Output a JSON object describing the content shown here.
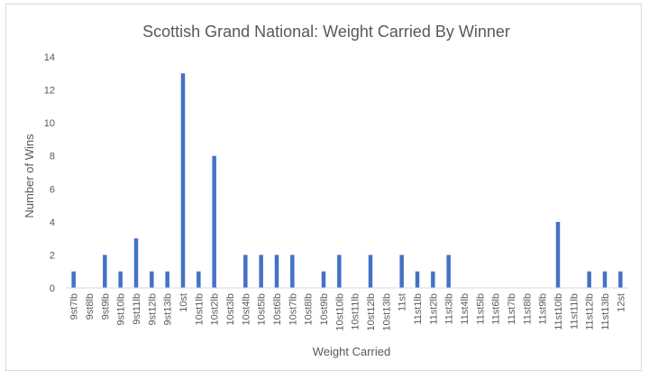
{
  "chart_data": {
    "type": "bar",
    "title": "Scottish Grand National: Weight Carried By Winner",
    "xlabel": "Weight Carried",
    "ylabel": "Number of Wins",
    "ylim": [
      0,
      14
    ],
    "yticks": [
      0,
      2,
      4,
      6,
      8,
      10,
      12,
      14
    ],
    "grid": false,
    "legend": "none",
    "bar_color": "#4472c4",
    "categories": [
      "9st7lb",
      "9st8lb",
      "9st9lb",
      "9st10lb",
      "9st11lb",
      "9st12lb",
      "9st13lb",
      "10st",
      "10st1lb",
      "10st2lb",
      "10st3lb",
      "10st4lb",
      "10st5lb",
      "10st6lb",
      "10st7lb",
      "10st8lb",
      "10st9lb",
      "10st10lb",
      "10st11lb",
      "10st12lb",
      "10st13lb",
      "11st",
      "11st1lb",
      "11st2lb",
      "11st3lb",
      "11st4lb",
      "11st5lb",
      "11st6lb",
      "11st7lb",
      "11st8lb",
      "11st9lb",
      "11st10lb",
      "11st11lb",
      "11st12lb",
      "11st13lb",
      "12st"
    ],
    "values": [
      1,
      0,
      2,
      1,
      3,
      1,
      1,
      13,
      1,
      8,
      0,
      2,
      2,
      2,
      2,
      0,
      1,
      2,
      0,
      2,
      0,
      2,
      1,
      1,
      2,
      0,
      0,
      0,
      0,
      0,
      0,
      4,
      0,
      1,
      1,
      1
    ]
  }
}
